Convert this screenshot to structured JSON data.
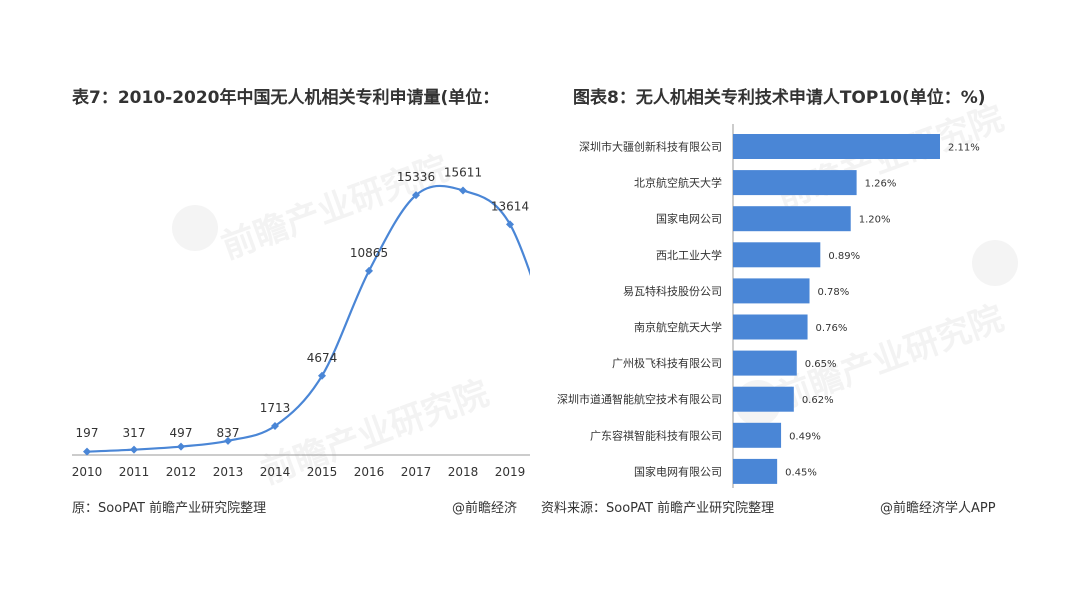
{
  "left_title": "表7：2010-2020年中国无人机相关专利申请量(单位：",
  "right_title": "图表8：无人机相关专利技术申请人TOP10(单位：%)",
  "left_source": "原：SooPAT 前瞻产业研究院整理",
  "left_credit": "@前瞻经济",
  "right_source": "资料来源：SooPAT 前瞻产业研究院整理",
  "right_credit": "@前瞻经济学人APP",
  "watermark_text": "前瞻产业研究院",
  "colors": {
    "line": "#4a86d6",
    "bar": "#4a86d6",
    "axis": "#999999"
  },
  "chart_data": [
    {
      "type": "line",
      "title": "表7：2010-2020年中国无人机相关专利申请量(单位：",
      "x": [
        "2010",
        "2011",
        "2012",
        "2013",
        "2014",
        "2015",
        "2016",
        "2017",
        "2018",
        "2019"
      ],
      "values": [
        197,
        317,
        497,
        837,
        1713,
        4674,
        10865,
        15336,
        15611,
        13614
      ],
      "ylim": [
        0,
        18000
      ],
      "grid": false
    },
    {
      "type": "bar",
      "orientation": "horizontal",
      "title": "图表8：无人机相关专利技术申请人TOP10(单位：%)",
      "categories": [
        "深圳市大疆创新科技有限公司",
        "北京航空航天大学",
        "国家电网公司",
        "西北工业大学",
        "易瓦特科技股份公司",
        "南京航空航天大学",
        "广州极飞科技有限公司",
        "深圳市道通智能航空技术有限公司",
        "广东容祺智能科技有限公司",
        "国家电网有限公司"
      ],
      "values": [
        2.11,
        1.26,
        1.2,
        0.89,
        0.78,
        0.76,
        0.65,
        0.62,
        0.49,
        0.45
      ],
      "value_labels": [
        "2.11%",
        "1.26%",
        "1.20%",
        "0.89%",
        "0.78%",
        "0.76%",
        "0.65%",
        "0.62%",
        "0.49%",
        "0.45%"
      ],
      "xlim": [
        0,
        2.2
      ],
      "grid": false
    }
  ]
}
